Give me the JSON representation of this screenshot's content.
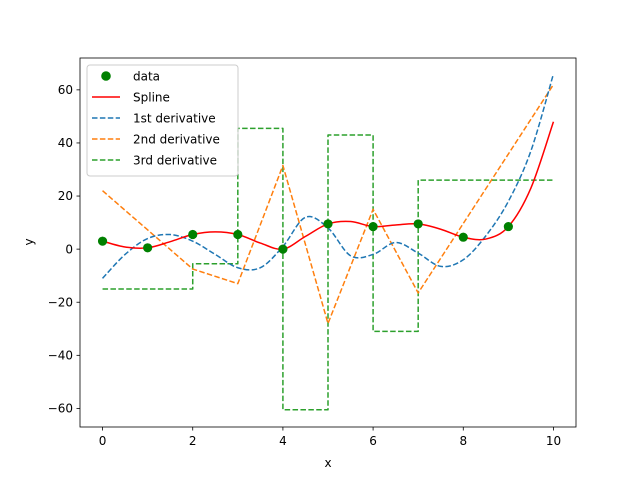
{
  "chart_data": {
    "type": "line",
    "title": "",
    "xlabel": "x",
    "ylabel": "y",
    "xlim": [
      -0.5,
      10.5
    ],
    "ylim": [
      -67,
      72
    ],
    "xticks": [
      0,
      2,
      4,
      6,
      8,
      10
    ],
    "xtick_labels": [
      "0",
      "2",
      "4",
      "6",
      "8",
      "10"
    ],
    "yticks": [
      -60,
      -40,
      -20,
      0,
      20,
      40,
      60
    ],
    "ytick_labels": [
      "−60",
      "−40",
      "−20",
      "0",
      "20",
      "40",
      "60"
    ],
    "grid": false,
    "legend": {
      "position": "upper-left",
      "entries": [
        {
          "label": "data",
          "color": "#008000",
          "style": "marker"
        },
        {
          "label": "Spline",
          "color": "#ff0000",
          "style": "solid"
        },
        {
          "label": "1st derivative",
          "color": "#1f77b4",
          "style": "dashed"
        },
        {
          "label": "2nd derivative",
          "color": "#ff7f0e",
          "style": "dashed"
        },
        {
          "label": "3rd derivative",
          "color": "#2ca02c",
          "style": "dashed"
        }
      ]
    },
    "data_points": {
      "name": "data",
      "color": "#008000",
      "x": [
        0,
        1,
        2,
        3,
        4,
        5,
        6,
        7,
        8,
        9
      ],
      "y": [
        3,
        0.5,
        5.5,
        5.5,
        0,
        9.5,
        8.5,
        9.5,
        4.5,
        8.5
      ]
    },
    "series": [
      {
        "name": "Spline",
        "color": "#ff0000",
        "dash": "solid",
        "x": [
          0,
          0.5,
          1,
          1.5,
          2,
          2.5,
          3,
          3.5,
          4,
          4.5,
          5,
          5.5,
          6,
          6.5,
          7,
          7.5,
          8,
          8.5,
          9,
          9.5,
          10
        ],
        "y": [
          3,
          0.8,
          0.5,
          2.8,
          5.5,
          6.5,
          5.5,
          2.3,
          0,
          4.8,
          9.5,
          10.4,
          8.5,
          9.1,
          9.5,
          7.5,
          4.5,
          3.8,
          8.5,
          23,
          48
        ]
      },
      {
        "name": "1st derivative",
        "color": "#1f77b4",
        "dash": "dashed",
        "x": [
          0,
          0.5,
          1,
          1.5,
          2,
          2.5,
          3,
          3.5,
          4,
          4.5,
          5,
          5.5,
          6,
          6.5,
          7,
          7.5,
          8,
          8.5,
          9,
          9.5,
          10
        ],
        "y": [
          -11,
          -2,
          4,
          5.5,
          3,
          -2,
          -7,
          -7,
          1,
          12,
          8,
          -2.5,
          -2,
          2.5,
          -1.5,
          -6.5,
          -4,
          5,
          18,
          37,
          66
        ]
      },
      {
        "name": "2nd derivative",
        "color": "#ff7f0e",
        "dash": "dashed",
        "x": [
          0,
          2,
          3,
          4,
          5,
          6,
          7,
          10
        ],
        "y": [
          22,
          -7.5,
          -13,
          31.5,
          -28,
          15,
          -16.5,
          62
        ]
      },
      {
        "name": "3rd derivative",
        "color": "#2ca02c",
        "dash": "dashed",
        "step": true,
        "x": [
          0,
          2,
          2,
          3,
          3,
          4,
          4,
          5,
          5,
          6,
          6,
          7,
          7,
          10
        ],
        "y": [
          -15,
          -15,
          -5.5,
          -5.5,
          45.5,
          45.5,
          -60.5,
          -60.5,
          43,
          43,
          -31,
          -31,
          26,
          26
        ]
      }
    ]
  }
}
